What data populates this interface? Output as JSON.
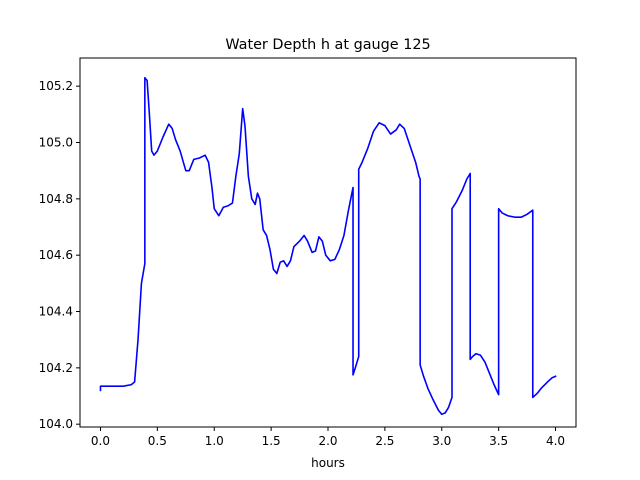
{
  "chart_data": {
    "type": "line",
    "title": "Water Depth h at gauge 125",
    "xlabel": "hours",
    "ylabel": "",
    "xlim": [
      -0.18,
      4.18
    ],
    "ylim": [
      103.99,
      105.3
    ],
    "x_ticks": [
      0.0,
      0.5,
      1.0,
      1.5,
      2.0,
      2.5,
      3.0,
      3.5,
      4.0
    ],
    "x_tick_labels": [
      "0.0",
      "0.5",
      "1.0",
      "1.5",
      "2.0",
      "2.5",
      "3.0",
      "3.5",
      "4.0"
    ],
    "y_ticks": [
      104.0,
      104.2,
      104.4,
      104.6,
      104.8,
      105.0,
      105.2
    ],
    "y_tick_labels": [
      "104.0",
      "104.2",
      "104.4",
      "104.6",
      "104.8",
      "105.0",
      "105.2"
    ],
    "grid": false,
    "legend": "none",
    "series": [
      {
        "color": "#0000ff",
        "points": [
          [
            0.0,
            104.12
          ],
          [
            0.0,
            104.135
          ],
          [
            0.1,
            104.135
          ],
          [
            0.2,
            104.135
          ],
          [
            0.27,
            104.14
          ],
          [
            0.3,
            104.15
          ],
          [
            0.33,
            104.3
          ],
          [
            0.36,
            104.5
          ],
          [
            0.39,
            104.57
          ],
          [
            0.39,
            105.23
          ],
          [
            0.41,
            105.22
          ],
          [
            0.43,
            105.1
          ],
          [
            0.45,
            104.97
          ],
          [
            0.47,
            104.955
          ],
          [
            0.5,
            104.97
          ],
          [
            0.55,
            105.02
          ],
          [
            0.6,
            105.065
          ],
          [
            0.63,
            105.05
          ],
          [
            0.66,
            105.01
          ],
          [
            0.7,
            104.97
          ],
          [
            0.75,
            104.9
          ],
          [
            0.78,
            104.9
          ],
          [
            0.82,
            104.94
          ],
          [
            0.87,
            104.945
          ],
          [
            0.92,
            104.955
          ],
          [
            0.95,
            104.93
          ],
          [
            0.98,
            104.84
          ],
          [
            1.0,
            104.765
          ],
          [
            1.04,
            104.74
          ],
          [
            1.08,
            104.77
          ],
          [
            1.12,
            104.775
          ],
          [
            1.16,
            104.785
          ],
          [
            1.19,
            104.88
          ],
          [
            1.22,
            104.96
          ],
          [
            1.25,
            105.12
          ],
          [
            1.27,
            105.06
          ],
          [
            1.3,
            104.88
          ],
          [
            1.33,
            104.8
          ],
          [
            1.36,
            104.78
          ],
          [
            1.38,
            104.82
          ],
          [
            1.4,
            104.8
          ],
          [
            1.43,
            104.69
          ],
          [
            1.46,
            104.67
          ],
          [
            1.49,
            104.62
          ],
          [
            1.52,
            104.55
          ],
          [
            1.55,
            104.535
          ],
          [
            1.58,
            104.575
          ],
          [
            1.61,
            104.58
          ],
          [
            1.64,
            104.56
          ],
          [
            1.67,
            104.58
          ],
          [
            1.7,
            104.63
          ],
          [
            1.75,
            104.65
          ],
          [
            1.79,
            104.67
          ],
          [
            1.82,
            104.65
          ],
          [
            1.86,
            104.61
          ],
          [
            1.89,
            104.615
          ],
          [
            1.92,
            104.665
          ],
          [
            1.95,
            104.65
          ],
          [
            1.98,
            104.6
          ],
          [
            2.02,
            104.58
          ],
          [
            2.06,
            104.585
          ],
          [
            2.1,
            104.62
          ],
          [
            2.14,
            104.67
          ],
          [
            2.18,
            104.76
          ],
          [
            2.22,
            104.84
          ],
          [
            2.22,
            104.175
          ],
          [
            2.24,
            104.2
          ],
          [
            2.27,
            104.24
          ],
          [
            2.27,
            104.905
          ],
          [
            2.3,
            104.93
          ],
          [
            2.35,
            104.98
          ],
          [
            2.4,
            105.04
          ],
          [
            2.45,
            105.07
          ],
          [
            2.5,
            105.06
          ],
          [
            2.55,
            105.03
          ],
          [
            2.6,
            105.045
          ],
          [
            2.63,
            105.065
          ],
          [
            2.67,
            105.05
          ],
          [
            2.72,
            104.99
          ],
          [
            2.77,
            104.93
          ],
          [
            2.8,
            104.88
          ],
          [
            2.81,
            104.87
          ],
          [
            2.81,
            104.21
          ],
          [
            2.84,
            104.17
          ],
          [
            2.88,
            104.125
          ],
          [
            2.92,
            104.09
          ],
          [
            2.97,
            104.05
          ],
          [
            3.0,
            104.035
          ],
          [
            3.03,
            104.04
          ],
          [
            3.06,
            104.06
          ],
          [
            3.09,
            104.095
          ],
          [
            3.09,
            104.765
          ],
          [
            3.13,
            104.79
          ],
          [
            3.18,
            104.83
          ],
          [
            3.22,
            104.87
          ],
          [
            3.25,
            104.89
          ],
          [
            3.25,
            104.23
          ],
          [
            3.27,
            104.24
          ],
          [
            3.3,
            104.25
          ],
          [
            3.34,
            104.245
          ],
          [
            3.38,
            104.22
          ],
          [
            3.42,
            104.18
          ],
          [
            3.46,
            104.14
          ],
          [
            3.5,
            104.105
          ],
          [
            3.5,
            104.765
          ],
          [
            3.53,
            104.75
          ],
          [
            3.58,
            104.74
          ],
          [
            3.64,
            104.735
          ],
          [
            3.7,
            104.735
          ],
          [
            3.75,
            104.745
          ],
          [
            3.8,
            104.76
          ],
          [
            3.8,
            104.095
          ],
          [
            3.84,
            104.11
          ],
          [
            3.88,
            104.13
          ],
          [
            3.93,
            104.15
          ],
          [
            3.97,
            104.165
          ],
          [
            4.0,
            104.17
          ]
        ]
      }
    ]
  }
}
